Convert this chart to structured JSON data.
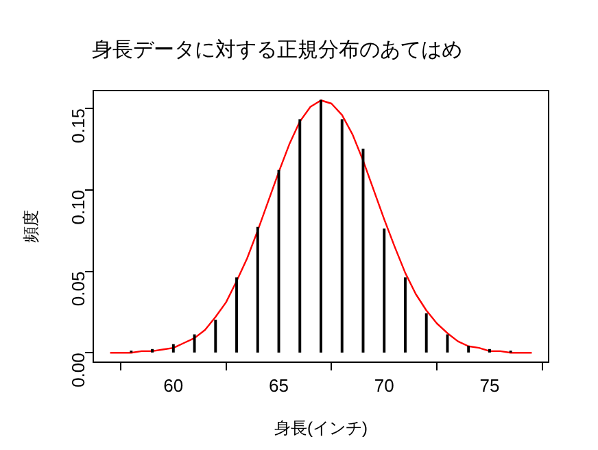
{
  "chart_data": {
    "type": "bar",
    "title": "身長データに対する正規分布のあてはめ",
    "xlabel": "身長(インチ)",
    "ylabel": "頻度",
    "xlim": [
      56.2,
      77.8
    ],
    "xticks": [
      60,
      65,
      70,
      75
    ],
    "ylim": [
      -0.0058,
      0.161
    ],
    "yticks": [
      {
        "value": 0,
        "label": "0.00"
      },
      {
        "value": 0.05,
        "label": "0.05"
      },
      {
        "value": 0.1,
        "label": "0.10"
      },
      {
        "value": 0.15,
        "label": "0.15"
      }
    ],
    "grid": false,
    "legend": false,
    "marker": "none",
    "series": [
      {
        "color": "#000000",
        "x": [
          58,
          59,
          60,
          61,
          62,
          63,
          64,
          65,
          66,
          67,
          68,
          69,
          70,
          71,
          72,
          73,
          74,
          75,
          76
        ],
        "values": [
          0.001,
          0.002,
          0.005,
          0.011,
          0.02,
          0.046,
          0.077,
          0.112,
          0.143,
          0.155,
          0.143,
          0.125,
          0.076,
          0.046,
          0.024,
          0.011,
          0.004,
          0.002,
          0.001
        ]
      },
      {
        "type": "line",
        "color": "#ff0000",
        "line_style": "solid",
        "x": [
          57,
          57.5,
          58,
          58.5,
          59,
          59.5,
          60,
          60.5,
          61,
          61.5,
          62,
          62.5,
          63,
          63.5,
          64,
          64.5,
          65,
          65.5,
          66,
          66.5,
          67,
          67.5,
          68,
          68.5,
          69,
          69.5,
          70,
          70.5,
          71,
          71.5,
          72,
          72.5,
          73,
          73.5,
          74,
          74.5,
          75,
          75.5,
          76,
          76.5,
          77
        ],
        "values": [
          0,
          0,
          0,
          0.001,
          0.001,
          0.002,
          0.003,
          0.006,
          0.009,
          0.014,
          0.022,
          0.031,
          0.044,
          0.058,
          0.075,
          0.093,
          0.111,
          0.128,
          0.142,
          0.151,
          0.155,
          0.153,
          0.146,
          0.134,
          0.118,
          0.1,
          0.082,
          0.065,
          0.049,
          0.036,
          0.026,
          0.018,
          0.012,
          0.007,
          0.004,
          0.003,
          0.001,
          0.001,
          0,
          0,
          0
        ]
      }
    ]
  }
}
